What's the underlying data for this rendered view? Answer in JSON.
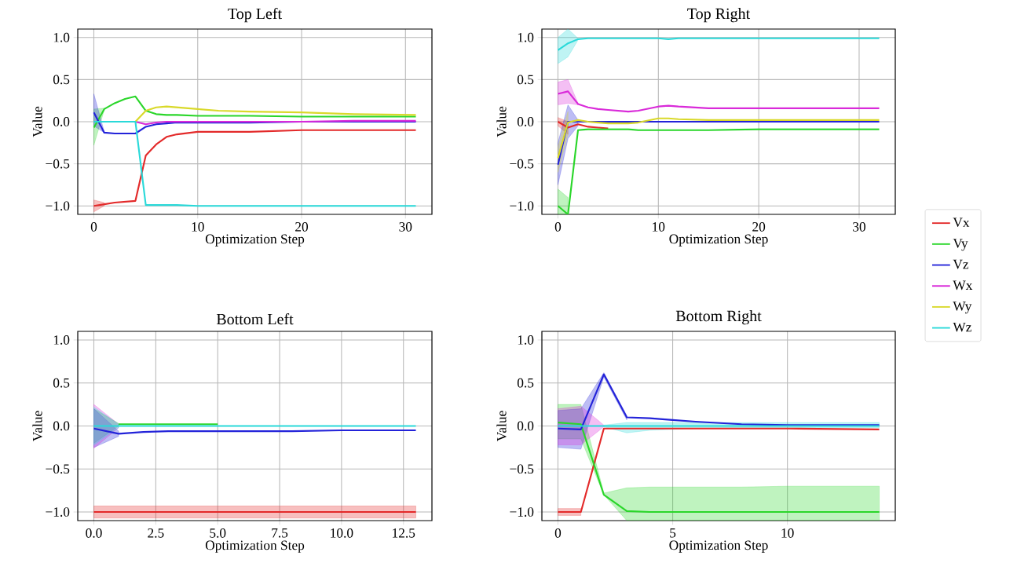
{
  "chart_data": [
    {
      "type": "line",
      "title": "Top Left",
      "xlabel": "Optimization Step",
      "ylabel": "Value",
      "grid": true,
      "x": [
        0,
        1,
        2,
        3,
        4,
        5,
        6,
        7,
        8,
        10,
        12,
        15,
        20,
        25,
        31
      ],
      "xlim": [
        -1.55,
        32.55
      ],
      "ylim": [
        -1.1,
        1.1
      ],
      "xticks": [
        0,
        10,
        20,
        30
      ],
      "yticks": [
        {
          "value": -1,
          "label": "−1.0"
        },
        {
          "value": -0.5,
          "label": "−0.5"
        },
        {
          "value": 0,
          "label": "0.0"
        },
        {
          "value": 0.5,
          "label": "0.5"
        },
        {
          "value": 1,
          "label": "1.0"
        }
      ],
      "series": [
        {
          "color": "#e32a2a",
          "values": [
            -1.0,
            -0.98,
            -0.96,
            -0.95,
            -0.94,
            -0.4,
            -0.27,
            -0.18,
            -0.15,
            -0.12,
            -0.12,
            -0.12,
            -0.1,
            -0.1,
            -0.1
          ],
          "lower": [
            -1.07,
            -1.0,
            null,
            null,
            null,
            null,
            null,
            null,
            null,
            null,
            null,
            null,
            null,
            null,
            null
          ],
          "upper": [
            -0.93,
            -0.96,
            null,
            null,
            null,
            null,
            null,
            null,
            null,
            null,
            null,
            null,
            null,
            null,
            null
          ]
        },
        {
          "color": "#2ad62a",
          "values": [
            -0.07,
            0.15,
            0.22,
            0.27,
            0.3,
            0.13,
            0.09,
            0.08,
            0.08,
            0.07,
            0.07,
            0.07,
            0.06,
            0.06,
            0.06
          ],
          "lower": [
            -0.28,
            0.14,
            null,
            null,
            null,
            null,
            null,
            null,
            null,
            null,
            null,
            null,
            null,
            null,
            null
          ],
          "upper": [
            0.15,
            0.16,
            null,
            null,
            null,
            null,
            null,
            null,
            null,
            null,
            null,
            null,
            null,
            null,
            null
          ]
        },
        {
          "color": "#2323d9",
          "values": [
            0.11,
            -0.13,
            -0.14,
            -0.14,
            -0.14,
            -0.06,
            -0.03,
            -0.02,
            -0.01,
            -0.01,
            -0.01,
            -0.01,
            0.0,
            0.0,
            0.0
          ],
          "lower": [
            -0.05,
            -0.13,
            null,
            null,
            null,
            null,
            null,
            null,
            null,
            null,
            null,
            null,
            null,
            null,
            null
          ],
          "upper": [
            0.33,
            -0.12,
            null,
            null,
            null,
            null,
            null,
            null,
            null,
            null,
            null,
            null,
            null,
            null,
            null
          ]
        },
        {
          "color": "#d92ad9",
          "values": [
            null,
            null,
            null,
            null,
            0.0,
            -0.03,
            -0.01,
            0.0,
            0.0,
            0.0,
            0.0,
            0.0,
            0.0,
            0.01,
            0.01
          ]
        },
        {
          "color": "#d9d92a",
          "values": [
            null,
            null,
            null,
            null,
            0.0,
            0.13,
            0.17,
            0.18,
            0.17,
            0.15,
            0.13,
            0.12,
            0.11,
            0.09,
            0.08
          ]
        },
        {
          "color": "#2ad9d9",
          "values": [
            0.0,
            0.0,
            0.0,
            0.0,
            0.0,
            -0.99,
            -0.99,
            -0.99,
            -0.99,
            -1.0,
            -1.0,
            -1.0,
            -1.0,
            -1.0,
            -1.0
          ]
        }
      ]
    },
    {
      "type": "line",
      "title": "Top Right",
      "xlabel": "Optimization Step",
      "ylabel": "Value",
      "grid": true,
      "legend": "right",
      "x": [
        0,
        1,
        2,
        3,
        4,
        5,
        7,
        8,
        10,
        11,
        12,
        15,
        20,
        25,
        32
      ],
      "xlim": [
        -1.6,
        33.6
      ],
      "ylim": [
        -1.1,
        1.1
      ],
      "xticks": [
        0,
        10,
        20,
        30
      ],
      "yticks": [
        {
          "value": -1,
          "label": "−1.0"
        },
        {
          "value": -0.5,
          "label": "−0.5"
        },
        {
          "value": 0,
          "label": "0.0"
        },
        {
          "value": 0.5,
          "label": "0.5"
        },
        {
          "value": 1,
          "label": "1.0"
        }
      ],
      "series": [
        {
          "name": "Vx",
          "color": "#e32a2a",
          "values": [
            0.0,
            -0.07,
            -0.03,
            -0.06,
            -0.07,
            -0.08,
            null,
            null,
            null,
            null,
            null,
            null,
            null,
            null,
            null
          ],
          "lower": [
            -0.05,
            -0.15,
            null,
            null,
            null,
            null,
            null,
            null,
            null,
            null,
            null,
            null,
            null,
            null,
            null
          ],
          "upper": [
            0.05,
            0.0,
            null,
            null,
            null,
            null,
            null,
            null,
            null,
            null,
            null,
            null,
            null,
            null,
            null
          ]
        },
        {
          "name": "Vy",
          "color": "#2ad62a",
          "values": [
            -1.0,
            -1.1,
            -0.1,
            -0.09,
            -0.09,
            -0.09,
            -0.09,
            -0.1,
            -0.1,
            -0.1,
            -0.1,
            -0.1,
            -0.09,
            -0.09,
            -0.09
          ],
          "lower": [
            -1.1,
            -1.1,
            null,
            null,
            null,
            null,
            null,
            null,
            null,
            null,
            null,
            null,
            null,
            null,
            null
          ],
          "upper": [
            -0.8,
            -0.9,
            null,
            null,
            null,
            null,
            null,
            null,
            null,
            null,
            null,
            null,
            null,
            null,
            null
          ]
        },
        {
          "name": "Vz",
          "color": "#2323d9",
          "values": [
            -0.51,
            0.0,
            0.0,
            0.0,
            0.0,
            0.0,
            0.0,
            0.0,
            0.0,
            0.0,
            0.0,
            0.0,
            0.0,
            0.0,
            0.0
          ],
          "lower": [
            -0.75,
            -0.2,
            -0.05,
            null,
            null,
            null,
            null,
            null,
            null,
            null,
            null,
            null,
            null,
            null,
            null
          ],
          "upper": [
            -0.25,
            0.2,
            0.02,
            null,
            null,
            null,
            null,
            null,
            null,
            null,
            null,
            null,
            null,
            null,
            null
          ]
        },
        {
          "name": "Wx",
          "color": "#d92ad9",
          "values": [
            0.33,
            0.36,
            0.21,
            0.17,
            0.15,
            0.14,
            0.12,
            0.13,
            0.18,
            0.19,
            0.18,
            0.16,
            0.16,
            0.16,
            0.16
          ],
          "lower": [
            0.2,
            0.22,
            0.2,
            null,
            null,
            null,
            null,
            null,
            null,
            null,
            null,
            null,
            null,
            null,
            null
          ],
          "upper": [
            0.47,
            0.5,
            0.22,
            null,
            null,
            null,
            null,
            null,
            null,
            null,
            null,
            null,
            null,
            null,
            null
          ]
        },
        {
          "name": "Wy",
          "color": "#d9d92a",
          "values": [
            -0.43,
            -0.01,
            0.02,
            0.0,
            -0.01,
            -0.02,
            -0.02,
            -0.01,
            0.04,
            0.04,
            0.03,
            0.02,
            0.02,
            0.02,
            0.02
          ],
          "lower": [
            -0.6,
            -0.15,
            null,
            null,
            null,
            null,
            null,
            null,
            null,
            null,
            null,
            null,
            null,
            null,
            null
          ],
          "upper": [
            -0.3,
            0.12,
            null,
            null,
            null,
            null,
            null,
            null,
            null,
            null,
            null,
            null,
            null,
            null,
            null
          ]
        },
        {
          "name": "Wz",
          "color": "#2ad9d9",
          "values": [
            0.85,
            0.93,
            0.98,
            0.99,
            0.99,
            0.99,
            0.99,
            0.99,
            0.99,
            0.98,
            0.99,
            0.99,
            0.99,
            0.99,
            0.99
          ],
          "lower": [
            0.69,
            0.77,
            0.97,
            null,
            null,
            null,
            null,
            null,
            null,
            null,
            null,
            null,
            null,
            null,
            null
          ],
          "upper": [
            1.0,
            1.1,
            0.99,
            null,
            null,
            null,
            null,
            null,
            null,
            null,
            null,
            null,
            null,
            null,
            null
          ]
        }
      ]
    },
    {
      "type": "line",
      "title": "Bottom Left",
      "xlabel": "Optimization Step",
      "ylabel": "Value",
      "grid": true,
      "x": [
        0,
        1,
        2,
        3,
        5,
        8,
        10,
        13
      ],
      "xlim": [
        -0.65,
        13.65
      ],
      "ylim": [
        -1.1,
        1.1
      ],
      "xticks": [
        {
          "value": 0,
          "label": "0.0"
        },
        {
          "value": 2.5,
          "label": "2.5"
        },
        {
          "value": 5,
          "label": "5.0"
        },
        {
          "value": 7.5,
          "label": "7.5"
        },
        {
          "value": 10,
          "label": "10.0"
        },
        {
          "value": 12.5,
          "label": "12.5"
        }
      ],
      "yticks": [
        {
          "value": -1,
          "label": "−1.0"
        },
        {
          "value": -0.5,
          "label": "−0.5"
        },
        {
          "value": 0,
          "label": "0.0"
        },
        {
          "value": 0.5,
          "label": "0.5"
        },
        {
          "value": 1,
          "label": "1.0"
        }
      ],
      "series": [
        {
          "color": "#e32a2a",
          "values": [
            -1.0,
            -1.0,
            -1.0,
            -1.0,
            -1.0,
            -1.0,
            -1.0,
            -1.0
          ],
          "lower": [
            -1.07,
            -1.07,
            -1.07,
            -1.07,
            -1.07,
            -1.07,
            -1.07,
            -1.07
          ],
          "upper": [
            -0.93,
            -0.93,
            -0.93,
            -0.93,
            -0.93,
            -0.93,
            -0.93,
            -0.93
          ]
        },
        {
          "color": "#2ad62a",
          "values": [
            null,
            0.02,
            0.02,
            0.02,
            0.02,
            null,
            null,
            null
          ],
          "lower": [
            -0.2,
            0.0,
            null,
            null,
            null,
            null,
            null,
            null
          ],
          "upper": [
            0.2,
            0.03,
            null,
            null,
            null,
            null,
            null,
            null
          ]
        },
        {
          "color": "#2323d9",
          "values": [
            -0.03,
            -0.09,
            -0.07,
            -0.06,
            -0.06,
            -0.06,
            -0.05,
            -0.05
          ],
          "lower": [
            -0.25,
            -0.12,
            null,
            null,
            null,
            null,
            null,
            null
          ],
          "upper": [
            0.2,
            -0.06,
            null,
            null,
            null,
            null,
            null,
            null
          ]
        },
        {
          "color": "#d92ad9",
          "values": [
            null,
            null,
            null,
            null,
            null,
            null,
            null,
            null
          ],
          "lower": [
            -0.26,
            -0.02,
            null,
            null,
            null,
            null,
            null,
            null
          ],
          "upper": [
            0.25,
            0.02,
            null,
            null,
            null,
            null,
            null,
            null
          ]
        },
        {
          "color": "#d9d92a",
          "values": [
            null,
            null,
            null,
            null,
            null,
            null,
            null,
            null
          ]
        },
        {
          "color": "#2ad9d9",
          "values": [
            0.0,
            0.0,
            0.0,
            0.0,
            0.0,
            0.0,
            0.0,
            0.0
          ],
          "lower": [
            -0.22,
            -0.02,
            null,
            null,
            null,
            null,
            null,
            null
          ],
          "upper": [
            0.22,
            0.02,
            null,
            null,
            null,
            null,
            null,
            null
          ]
        }
      ]
    },
    {
      "type": "line",
      "title": "Bottom Right",
      "xlabel": "Optimization Step",
      "ylabel": "Value",
      "grid": true,
      "x": [
        0,
        1,
        2,
        3,
        4,
        5,
        6,
        8,
        10,
        14
      ],
      "xlim": [
        -0.7,
        14.7
      ],
      "ylim": [
        -1.1,
        1.1
      ],
      "xticks": [
        0,
        5,
        10
      ],
      "yticks": [
        {
          "value": -1,
          "label": "−1.0"
        },
        {
          "value": -0.5,
          "label": "−0.5"
        },
        {
          "value": 0,
          "label": "0.0"
        },
        {
          "value": 0.5,
          "label": "0.5"
        },
        {
          "value": 1,
          "label": "1.0"
        }
      ],
      "series": [
        {
          "color": "#e32a2a",
          "values": [
            -1.0,
            -1.0,
            -0.03,
            -0.03,
            -0.03,
            -0.03,
            -0.03,
            -0.03,
            -0.03,
            -0.04
          ],
          "lower": [
            -1.04,
            -1.04,
            null,
            null,
            null,
            null,
            null,
            null,
            null,
            null
          ],
          "upper": [
            -0.96,
            -0.96,
            null,
            null,
            null,
            null,
            null,
            null,
            null,
            null
          ]
        },
        {
          "color": "#2ad62a",
          "values": [
            0.04,
            0.02,
            -0.8,
            -0.99,
            -1.0,
            -1.0,
            -1.0,
            -1.0,
            -1.0,
            -1.0
          ],
          "lower": [
            -0.15,
            -0.15,
            -0.8,
            -1.1,
            -1.1,
            -1.1,
            -1.1,
            -1.1,
            -1.1,
            -1.1
          ],
          "upper": [
            0.25,
            0.25,
            -0.78,
            -0.72,
            -0.71,
            -0.71,
            -0.71,
            -0.71,
            -0.7,
            -0.7
          ]
        },
        {
          "color": "#2323d9",
          "values": [
            -0.03,
            -0.04,
            0.6,
            0.1,
            0.09,
            0.07,
            0.05,
            0.02,
            0.01,
            0.01
          ],
          "lower": [
            -0.25,
            -0.27,
            0.57,
            0.07,
            null,
            null,
            null,
            null,
            null,
            null
          ],
          "upper": [
            0.18,
            0.2,
            0.62,
            0.12,
            null,
            null,
            null,
            null,
            null,
            null
          ]
        },
        {
          "color": "#d92ad9",
          "values": [
            null,
            null,
            null,
            null,
            null,
            null,
            null,
            null,
            null,
            null
          ],
          "lower": [
            -0.22,
            -0.22,
            -0.01,
            null,
            null,
            null,
            null,
            null,
            null,
            null
          ],
          "upper": [
            0.2,
            0.23,
            0.01,
            null,
            null,
            null,
            null,
            null,
            null,
            null
          ]
        },
        {
          "color": "#d9d92a",
          "values": [
            null,
            null,
            null,
            null,
            null,
            null,
            null,
            null,
            null,
            null
          ]
        },
        {
          "color": "#2ad9d9",
          "values": [
            0.0,
            0.0,
            0.0,
            0.0,
            0.0,
            0.0,
            0.0,
            0.0,
            0.0,
            0.0
          ],
          "lower": [
            null,
            null,
            -0.01,
            -0.08,
            -0.05,
            -0.04,
            -0.03,
            -0.02,
            -0.02,
            -0.02
          ],
          "upper": [
            null,
            null,
            0.01,
            0.04,
            0.04,
            0.04,
            0.04,
            0.04,
            0.04,
            0.04
          ]
        }
      ]
    }
  ]
}
